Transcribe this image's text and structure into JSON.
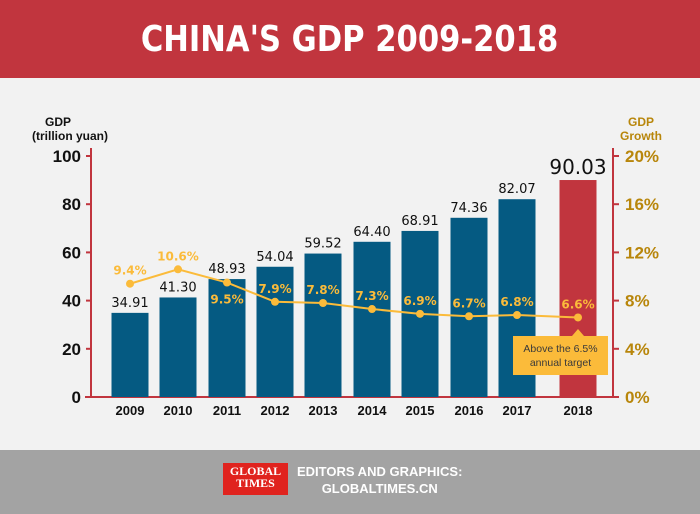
{
  "header": {
    "title": "CHINA'S GDP 2009-2018"
  },
  "footer": {
    "logo_text": "GLOBAL TIMES",
    "credit_line1": "EDITORS AND GRAPHICS:",
    "credit_line2": "GLOBALTIMES.CN"
  },
  "chart_data": {
    "type": "bar+line",
    "categories": [
      "2009",
      "2010",
      "2011",
      "2012",
      "2013",
      "2014",
      "2015",
      "2016",
      "2017",
      "2018"
    ],
    "series": [
      {
        "name": "GDP",
        "axis": "left",
        "type": "bar",
        "values": [
          34.91,
          41.3,
          48.93,
          54.04,
          59.52,
          64.4,
          68.91,
          74.36,
          82.07,
          90.03
        ],
        "labels": [
          "34.91",
          "41.30",
          "48.93",
          "54.04",
          "59.52",
          "64.40",
          "68.91",
          "74.36",
          "82.07",
          "90.03"
        ],
        "color": "#055a82",
        "highlight_color": "#c1353e"
      },
      {
        "name": "GDP Growth",
        "axis": "right",
        "type": "line",
        "values": [
          9.4,
          10.6,
          9.5,
          7.9,
          7.8,
          7.3,
          6.9,
          6.7,
          6.8,
          6.6
        ],
        "labels": [
          "9.4%",
          "10.6%",
          "9.5%",
          "7.9%",
          "7.8%",
          "7.3%",
          "6.9%",
          "6.7%",
          "6.8%",
          "6.6%"
        ],
        "color": "#fbbb3a"
      }
    ],
    "ylabel_left": [
      "GDP",
      "(trillion yuan)"
    ],
    "ylabel_right": [
      "GDP",
      "Growth"
    ],
    "ylim_left": [
      0,
      100
    ],
    "yticks_left": [
      "0",
      "20",
      "40",
      "60",
      "80",
      "100"
    ],
    "ylim_right": [
      0,
      20
    ],
    "yticks_right": [
      "0%",
      "4%",
      "8%",
      "12%",
      "16%",
      "20%"
    ],
    "annotation": "Above the 6.5% annual target",
    "grid": false,
    "axis_color": "#c1353e",
    "right_axis_text_color": "#b8860b"
  }
}
